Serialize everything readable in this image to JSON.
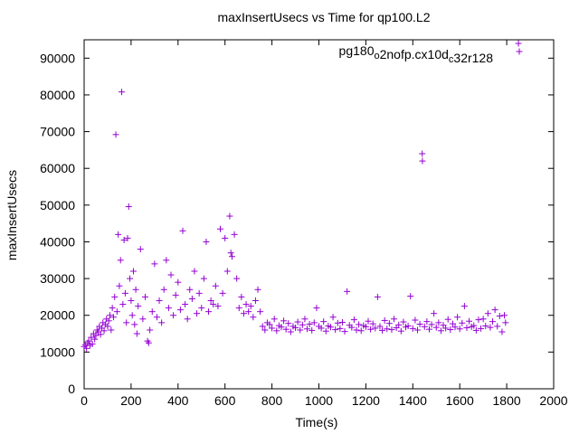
{
  "chart_data": {
    "type": "scatter",
    "title": "maxInsertUsecs vs Time for qp100.L2",
    "xlabel": "Time(s)",
    "ylabel": "maxInsertUsecs",
    "xlim": [
      0,
      2000
    ],
    "ylim": [
      0,
      95000
    ],
    "xticks": [
      0,
      200,
      400,
      600,
      800,
      1000,
      1200,
      1400,
      1600,
      1800,
      2000
    ],
    "yticks": [
      0,
      10000,
      20000,
      30000,
      40000,
      50000,
      60000,
      70000,
      80000,
      90000
    ],
    "grid": false,
    "legend_position": "top-right",
    "marker": "+",
    "color": "#9400d3",
    "series": [
      {
        "name": "pg180_o2nofp.cx10d_c32r128",
        "legend_parts": [
          {
            "text": "pg180",
            "sub": false
          },
          {
            "text": "o",
            "sub": true
          },
          {
            "text": "2nofp.cx10d",
            "sub": false
          },
          {
            "text": "c",
            "sub": true
          },
          {
            "text": "32r128",
            "sub": false
          }
        ],
        "points": [
          [
            0,
            11500
          ],
          [
            5,
            12000
          ],
          [
            10,
            11000
          ],
          [
            15,
            12500
          ],
          [
            20,
            13000
          ],
          [
            25,
            11800
          ],
          [
            30,
            14000
          ],
          [
            35,
            12200
          ],
          [
            40,
            15000
          ],
          [
            45,
            13500
          ],
          [
            50,
            14500
          ],
          [
            55,
            16000
          ],
          [
            60,
            15500
          ],
          [
            65,
            17000
          ],
          [
            70,
            14800
          ],
          [
            75,
            16500
          ],
          [
            80,
            18000
          ],
          [
            85,
            15800
          ],
          [
            90,
            17500
          ],
          [
            95,
            19000
          ],
          [
            100,
            17000
          ],
          [
            105,
            18500
          ],
          [
            110,
            20000
          ],
          [
            115,
            16000
          ],
          [
            120,
            22000
          ],
          [
            125,
            19500
          ],
          [
            130,
            25000
          ],
          [
            135,
            69200
          ],
          [
            140,
            21000
          ],
          [
            145,
            42000
          ],
          [
            150,
            28000
          ],
          [
            155,
            35000
          ],
          [
            160,
            80800
          ],
          [
            165,
            23000
          ],
          [
            170,
            40500
          ],
          [
            175,
            26000
          ],
          [
            180,
            18000
          ],
          [
            185,
            41000
          ],
          [
            190,
            49600
          ],
          [
            195,
            30000
          ],
          [
            200,
            24000
          ],
          [
            205,
            20000
          ],
          [
            210,
            32000
          ],
          [
            215,
            17500
          ],
          [
            220,
            27000
          ],
          [
            225,
            15000
          ],
          [
            230,
            22500
          ],
          [
            240,
            38000
          ],
          [
            250,
            19000
          ],
          [
            260,
            25000
          ],
          [
            270,
            13000
          ],
          [
            275,
            12500
          ],
          [
            280,
            16000
          ],
          [
            290,
            21000
          ],
          [
            300,
            34000
          ],
          [
            310,
            19500
          ],
          [
            320,
            24000
          ],
          [
            330,
            18000
          ],
          [
            340,
            27000
          ],
          [
            350,
            35000
          ],
          [
            360,
            22000
          ],
          [
            370,
            31000
          ],
          [
            380,
            20000
          ],
          [
            390,
            25500
          ],
          [
            400,
            29000
          ],
          [
            410,
            21500
          ],
          [
            420,
            43000
          ],
          [
            430,
            23000
          ],
          [
            440,
            19000
          ],
          [
            450,
            27000
          ],
          [
            460,
            24500
          ],
          [
            470,
            32000
          ],
          [
            480,
            20500
          ],
          [
            490,
            26000
          ],
          [
            500,
            22000
          ],
          [
            510,
            30000
          ],
          [
            520,
            40000
          ],
          [
            530,
            21000
          ],
          [
            540,
            24000
          ],
          [
            550,
            23000
          ],
          [
            560,
            28000
          ],
          [
            570,
            22500
          ],
          [
            580,
            43500
          ],
          [
            590,
            26000
          ],
          [
            600,
            41000
          ],
          [
            610,
            32000
          ],
          [
            620,
            47000
          ],
          [
            625,
            37000
          ],
          [
            630,
            36000
          ],
          [
            640,
            42000
          ],
          [
            650,
            30000
          ],
          [
            660,
            22000
          ],
          [
            670,
            25000
          ],
          [
            680,
            20500
          ],
          [
            690,
            23000
          ],
          [
            700,
            21000
          ],
          [
            710,
            22500
          ],
          [
            720,
            19500
          ],
          [
            730,
            24000
          ],
          [
            740,
            27000
          ],
          [
            750,
            21000
          ],
          [
            760,
            17000
          ],
          [
            770,
            16000
          ],
          [
            780,
            18000
          ],
          [
            790,
            17500
          ],
          [
            800,
            16500
          ],
          [
            810,
            19000
          ],
          [
            820,
            15800
          ],
          [
            830,
            17200
          ],
          [
            840,
            16800
          ],
          [
            850,
            18500
          ],
          [
            860,
            16200
          ],
          [
            870,
            17800
          ],
          [
            880,
            15500
          ],
          [
            890,
            17000
          ],
          [
            900,
            16600
          ],
          [
            910,
            18200
          ],
          [
            920,
            16000
          ],
          [
            930,
            17400
          ],
          [
            940,
            19000
          ],
          [
            950,
            16300
          ],
          [
            960,
            17600
          ],
          [
            970,
            15900
          ],
          [
            980,
            18000
          ],
          [
            990,
            22000
          ],
          [
            1000,
            17000
          ],
          [
            1010,
            16500
          ],
          [
            1020,
            18300
          ],
          [
            1030,
            15700
          ],
          [
            1040,
            17100
          ],
          [
            1050,
            16800
          ],
          [
            1060,
            19500
          ],
          [
            1070,
            16100
          ],
          [
            1080,
            17900
          ],
          [
            1090,
            16400
          ],
          [
            1100,
            18100
          ],
          [
            1110,
            15600
          ],
          [
            1120,
            26500
          ],
          [
            1130,
            17300
          ],
          [
            1140,
            16700
          ],
          [
            1150,
            18800
          ],
          [
            1160,
            16000
          ],
          [
            1170,
            17500
          ],
          [
            1180,
            15800
          ],
          [
            1190,
            17200
          ],
          [
            1200,
            16900
          ],
          [
            1210,
            18400
          ],
          [
            1220,
            16200
          ],
          [
            1230,
            17700
          ],
          [
            1240,
            16500
          ],
          [
            1250,
            25000
          ],
          [
            1260,
            17000
          ],
          [
            1270,
            15900
          ],
          [
            1280,
            18600
          ],
          [
            1290,
            16300
          ],
          [
            1300,
            17800
          ],
          [
            1310,
            16100
          ],
          [
            1320,
            19000
          ],
          [
            1330,
            16600
          ],
          [
            1340,
            17400
          ],
          [
            1350,
            15700
          ],
          [
            1360,
            18200
          ],
          [
            1370,
            16800
          ],
          [
            1380,
            17100
          ],
          [
            1390,
            25200
          ],
          [
            1400,
            16400
          ],
          [
            1410,
            18700
          ],
          [
            1420,
            16000
          ],
          [
            1430,
            17600
          ],
          [
            1440,
            64000
          ],
          [
            1441,
            62000
          ],
          [
            1450,
            16900
          ],
          [
            1460,
            18300
          ],
          [
            1470,
            16200
          ],
          [
            1480,
            17500
          ],
          [
            1490,
            20500
          ],
          [
            1500,
            16700
          ],
          [
            1510,
            18000
          ],
          [
            1520,
            15800
          ],
          [
            1530,
            17300
          ],
          [
            1540,
            16500
          ],
          [
            1550,
            18900
          ],
          [
            1560,
            16100
          ],
          [
            1570,
            17700
          ],
          [
            1580,
            16800
          ],
          [
            1590,
            19500
          ],
          [
            1600,
            16300
          ],
          [
            1610,
            17900
          ],
          [
            1620,
            22500
          ],
          [
            1630,
            16600
          ],
          [
            1640,
            18400
          ],
          [
            1650,
            16900
          ],
          [
            1660,
            17200
          ],
          [
            1670,
            15900
          ],
          [
            1680,
            18800
          ],
          [
            1690,
            16400
          ],
          [
            1700,
            19000
          ],
          [
            1710,
            17100
          ],
          [
            1720,
            20500
          ],
          [
            1730,
            16700
          ],
          [
            1740,
            18300
          ],
          [
            1750,
            21500
          ],
          [
            1760,
            17000
          ],
          [
            1770,
            19800
          ],
          [
            1780,
            15500
          ],
          [
            1790,
            20000
          ],
          [
            1795,
            18000
          ],
          [
            1850,
            94000
          ]
        ]
      }
    ]
  }
}
